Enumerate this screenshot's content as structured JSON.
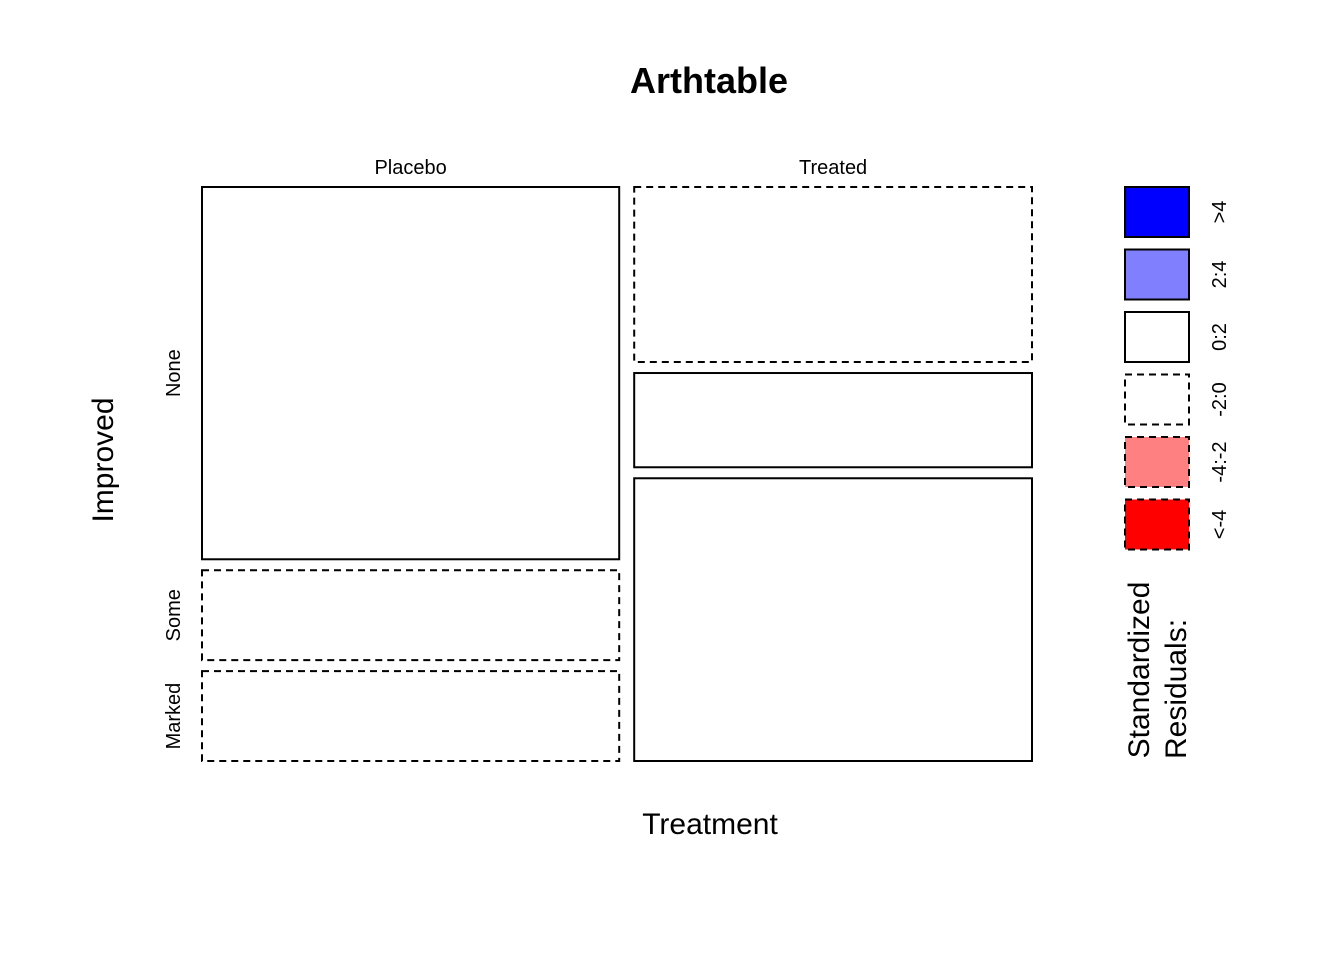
{
  "chart_data": {
    "type": "mosaic",
    "title": "Arthtable",
    "xlabel": "Treatment",
    "ylabel": "Improved",
    "x_categories": [
      "Placebo",
      "Treated"
    ],
    "y_categories": [
      "None",
      "Some",
      "Marked"
    ],
    "counts": [
      {
        "treatment": "Placebo",
        "improved": "None",
        "count": 29,
        "residual_sign": "positive"
      },
      {
        "treatment": "Placebo",
        "improved": "Some",
        "count": 7,
        "residual_sign": "negative"
      },
      {
        "treatment": "Placebo",
        "improved": "Marked",
        "count": 7,
        "residual_sign": "negative"
      },
      {
        "treatment": "Treated",
        "improved": "None",
        "count": 13,
        "residual_sign": "negative"
      },
      {
        "treatment": "Treated",
        "improved": "Some",
        "count": 7,
        "residual_sign": "positive"
      },
      {
        "treatment": "Treated",
        "improved": "Marked",
        "count": 21,
        "residual_sign": "positive"
      }
    ],
    "legend": {
      "title_line1": "Standardized",
      "title_line2": "Residuals:",
      "items": [
        {
          "label": ">4",
          "color": "#0000ff",
          "dashed": false
        },
        {
          "label": "2:4",
          "color": "#8080ff",
          "dashed": false
        },
        {
          "label": "0:2",
          "color": "#ffffff",
          "dashed": false
        },
        {
          "label": "-2:0",
          "color": "#ffffff",
          "dashed": true
        },
        {
          "label": "-4:-2",
          "color": "#ff8080",
          "dashed": true
        },
        {
          "label": "<-4",
          "color": "#ff0000",
          "dashed": true
        }
      ]
    }
  }
}
